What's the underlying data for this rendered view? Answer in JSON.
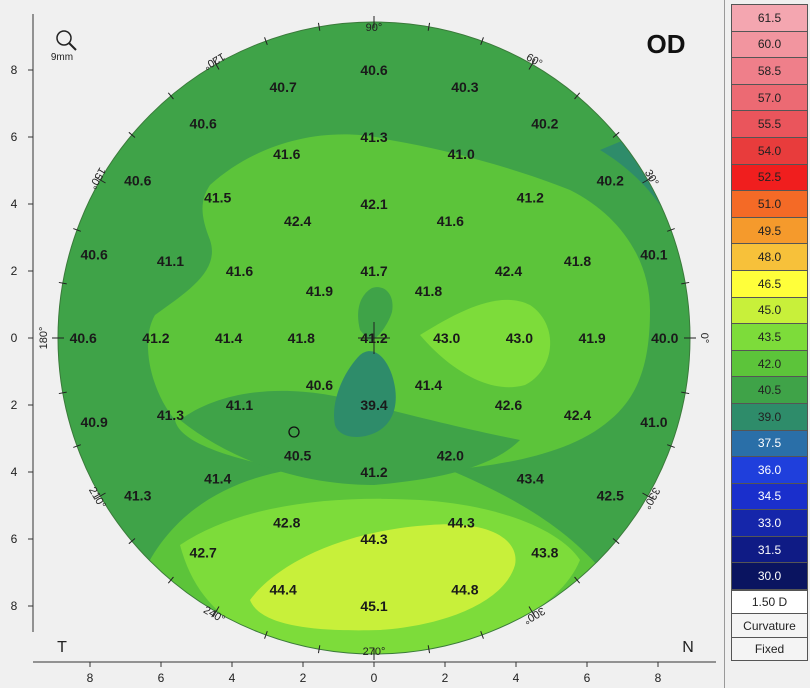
{
  "eye_label": "OD",
  "zoom_label": "9mm",
  "corner_left_label": "T",
  "corner_right_label": "N",
  "angles": [
    {
      "deg": 0,
      "text": "0°"
    },
    {
      "deg": 30,
      "text": "30°"
    },
    {
      "deg": 60,
      "text": "60°"
    },
    {
      "deg": 90,
      "text": "90°"
    },
    {
      "deg": 120,
      "text": "120°"
    },
    {
      "deg": 150,
      "text": "150°"
    },
    {
      "deg": 180,
      "text": "180°"
    },
    {
      "deg": 210,
      "text": "210°"
    },
    {
      "deg": 240,
      "text": "240°"
    },
    {
      "deg": 270,
      "text": "270°"
    },
    {
      "deg": 300,
      "text": "300°"
    },
    {
      "deg": 330,
      "text": "330°"
    }
  ],
  "y_ticks": [
    "8",
    "6",
    "4",
    "2",
    "0",
    "2",
    "4",
    "6",
    "8"
  ],
  "x_ticks": [
    "8",
    "6",
    "4",
    "2",
    "0",
    "2",
    "4",
    "6",
    "8"
  ],
  "values": [
    {
      "text": "40.6",
      "x": 0,
      "y": 8
    },
    {
      "text": "40.7",
      "x": -2.5,
      "y": 7.5
    },
    {
      "text": "40.3",
      "x": 2.5,
      "y": 7.5
    },
    {
      "text": "40.6",
      "x": -4.7,
      "y": 6.4
    },
    {
      "text": "41.3",
      "x": 0,
      "y": 6
    },
    {
      "text": "40.2",
      "x": 4.7,
      "y": 6.4
    },
    {
      "text": "41.6",
      "x": -2.4,
      "y": 5.5
    },
    {
      "text": "41.0",
      "x": 2.4,
      "y": 5.5
    },
    {
      "text": "40.6",
      "x": -6.5,
      "y": 4.7
    },
    {
      "text": "41.5",
      "x": -4.3,
      "y": 4.2
    },
    {
      "text": "42.1",
      "x": 0,
      "y": 4
    },
    {
      "text": "41.2",
      "x": 4.3,
      "y": 4.2
    },
    {
      "text": "40.2",
      "x": 6.5,
      "y": 4.7
    },
    {
      "text": "42.4",
      "x": -2.1,
      "y": 3.5
    },
    {
      "text": "41.6",
      "x": 2.1,
      "y": 3.5
    },
    {
      "text": "40.6",
      "x": -7.7,
      "y": 2.5
    },
    {
      "text": "41.1",
      "x": -5.6,
      "y": 2.3
    },
    {
      "text": "41.6",
      "x": -3.7,
      "y": 2.0
    },
    {
      "text": "41.7",
      "x": 0,
      "y": 2
    },
    {
      "text": "42.4",
      "x": 3.7,
      "y": 2.0
    },
    {
      "text": "41.8",
      "x": 5.6,
      "y": 2.3
    },
    {
      "text": "40.1",
      "x": 7.7,
      "y": 2.5
    },
    {
      "text": "41.9",
      "x": -1.5,
      "y": 1.4
    },
    {
      "text": "41.8",
      "x": 1.5,
      "y": 1.4
    },
    {
      "text": "40.6",
      "x": -8.0,
      "y": 0
    },
    {
      "text": "41.2",
      "x": -6.0,
      "y": 0
    },
    {
      "text": "41.4",
      "x": -4.0,
      "y": 0
    },
    {
      "text": "41.8",
      "x": -2.0,
      "y": 0
    },
    {
      "text": "41.2",
      "x": 0,
      "y": 0
    },
    {
      "text": "43.0",
      "x": 2.0,
      "y": 0
    },
    {
      "text": "43.0",
      "x": 4.0,
      "y": 0
    },
    {
      "text": "41.9",
      "x": 6.0,
      "y": 0
    },
    {
      "text": "40.0",
      "x": 8.0,
      "y": 0
    },
    {
      "text": "40.6",
      "x": -1.5,
      "y": -1.4
    },
    {
      "text": "41.4",
      "x": 1.5,
      "y": -1.4
    },
    {
      "text": "41.1",
      "x": -3.7,
      "y": -2.0
    },
    {
      "text": "39.4",
      "x": 0,
      "y": -2
    },
    {
      "text": "42.6",
      "x": 3.7,
      "y": -2.0
    },
    {
      "text": "40.9",
      "x": -7.7,
      "y": -2.5
    },
    {
      "text": "41.3",
      "x": -5.6,
      "y": -2.3
    },
    {
      "text": "42.4",
      "x": 5.6,
      "y": -2.3
    },
    {
      "text": "41.0",
      "x": 7.7,
      "y": -2.5
    },
    {
      "text": "40.5",
      "x": -2.1,
      "y": -3.5
    },
    {
      "text": "42.0",
      "x": 2.1,
      "y": -3.5
    },
    {
      "text": "41.2",
      "x": 0,
      "y": -4
    },
    {
      "text": "41.4",
      "x": -4.3,
      "y": -4.2
    },
    {
      "text": "43.4",
      "x": 4.3,
      "y": -4.2
    },
    {
      "text": "41.3",
      "x": -6.5,
      "y": -4.7
    },
    {
      "text": "42.5",
      "x": 6.5,
      "y": -4.7
    },
    {
      "text": "42.8",
      "x": -2.4,
      "y": -5.5
    },
    {
      "text": "44.3",
      "x": 2.4,
      "y": -5.5
    },
    {
      "text": "44.3",
      "x": 0,
      "y": -6
    },
    {
      "text": "42.7",
      "x": -4.7,
      "y": -6.4
    },
    {
      "text": "43.8",
      "x": 4.7,
      "y": -6.4
    },
    {
      "text": "44.4",
      "x": -2.5,
      "y": -7.5
    },
    {
      "text": "44.8",
      "x": 2.5,
      "y": -7.5
    },
    {
      "text": "45.1",
      "x": 0,
      "y": -8
    }
  ],
  "legend": {
    "scale": [
      {
        "label": "61.5",
        "color": "#f4a6b0"
      },
      {
        "label": "60.0",
        "color": "#f2959f"
      },
      {
        "label": "58.5",
        "color": "#ef7f8a"
      },
      {
        "label": "57.0",
        "color": "#ec6a73"
      },
      {
        "label": "55.5",
        "color": "#ea555c"
      },
      {
        "label": "54.0",
        "color": "#e83c3c"
      },
      {
        "label": "52.5",
        "color": "#f01e1e"
      },
      {
        "label": "51.0",
        "color": "#f46a26"
      },
      {
        "label": "49.5",
        "color": "#f59a2c"
      },
      {
        "label": "48.0",
        "color": "#f7c13a"
      },
      {
        "label": "46.5",
        "color": "#ffff3a"
      },
      {
        "label": "45.0",
        "color": "#c8f03a"
      },
      {
        "label": "43.5",
        "color": "#7ddc3a"
      },
      {
        "label": "42.0",
        "color": "#5cc43a"
      },
      {
        "label": "40.5",
        "color": "#3fa348"
      },
      {
        "label": "39.0",
        "color": "#2e8c6a"
      },
      {
        "label": "37.5",
        "color": "#2a6fa8"
      },
      {
        "label": "36.0",
        "color": "#1f3fdc"
      },
      {
        "label": "34.5",
        "color": "#1a2fcc"
      },
      {
        "label": "33.0",
        "color": "#1526aa"
      },
      {
        "label": "31.5",
        "color": "#0f1b85"
      },
      {
        "label": "30.0",
        "color": "#0a1460"
      }
    ],
    "step_label": "1.50 D",
    "mode_label": "Curvature",
    "scale_type_label": "Fixed"
  },
  "colors": {
    "bg_green": "#3fa348",
    "mid_green": "#5cc43a",
    "light_green": "#7ddc3a",
    "yellow_green": "#c8f03a",
    "dark_teal": "#2e8c6a"
  }
}
